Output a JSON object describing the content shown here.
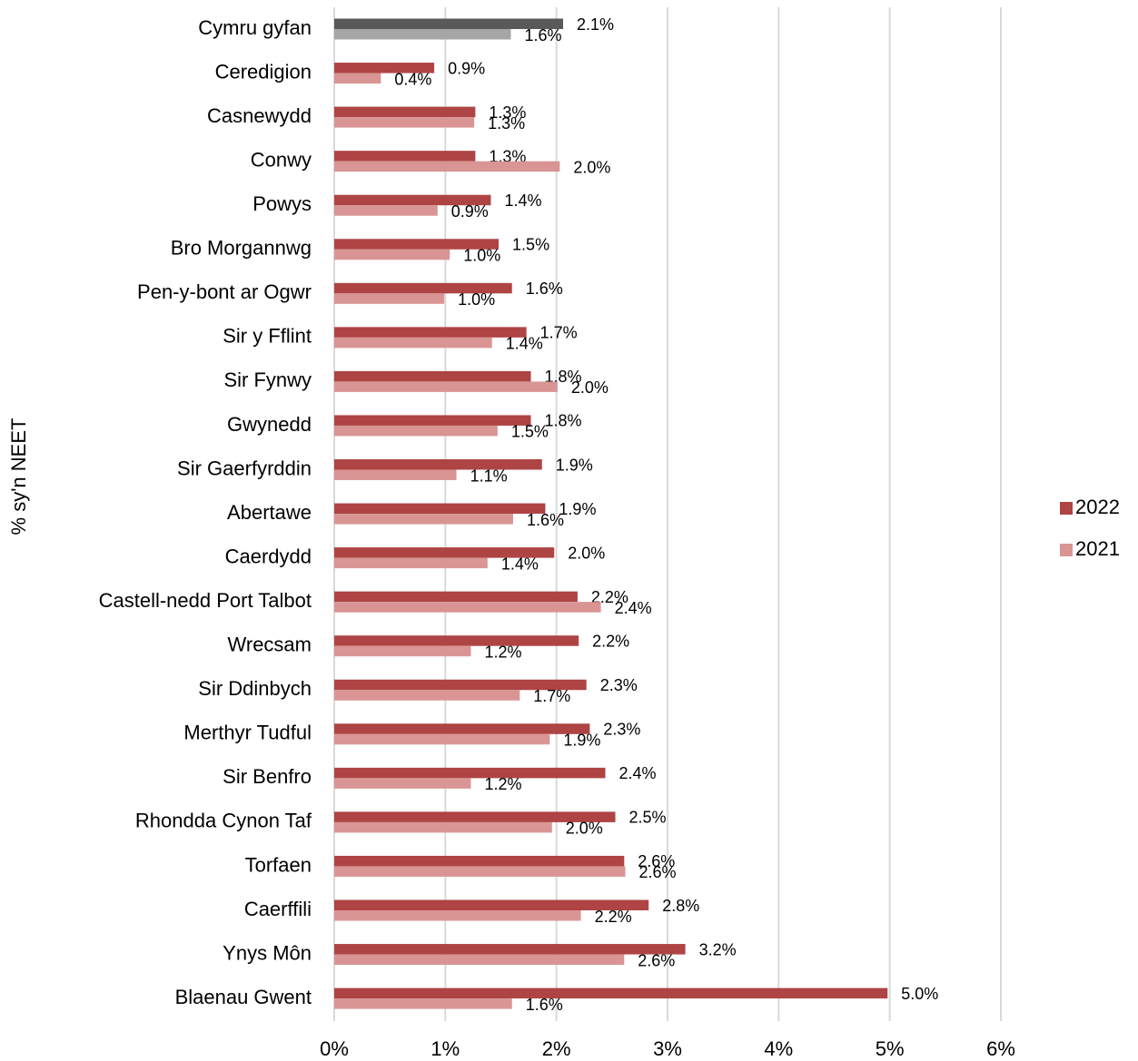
{
  "chart_data": {
    "type": "hbar",
    "y_axis_label": "% sy'n NEET",
    "categories": [
      "Cymru gyfan",
      "Ceredigion",
      "Casnewydd",
      "Conwy",
      "Powys",
      "Bro Morgannwg",
      "Pen-y-bont ar Ogwr",
      "Sir y Fflint",
      "Sir Fynwy",
      "Gwynedd",
      "Sir Gaerfyrddin",
      "Abertawe ",
      "Caerdydd",
      "Castell-nedd Port Talbot",
      "Wrecsam",
      "Sir Ddinbych",
      "Merthyr Tudful",
      "Sir Benfro",
      "Rhondda Cynon Taf",
      "Torfaen",
      "Caerffili",
      "Ynys Môn",
      "Blaenau Gwent"
    ],
    "series": [
      {
        "name": "2022",
        "color": "#ae4444",
        "point_colors": [
          "#595959",
          "#ae4444",
          "#ae4444",
          "#ae4444",
          "#ae4444",
          "#ae4444",
          "#ae4444",
          "#ae4444",
          "#ae4444",
          "#ae4444",
          "#ae4444",
          "#ae4444",
          "#ae4444",
          "#ae4444",
          "#ae4444",
          "#ae4444",
          "#ae4444",
          "#ae4444",
          "#ae4444",
          "#ae4444",
          "#ae4444",
          "#ae4444",
          "#ae4444"
        ],
        "values": [
          2.06,
          0.9,
          1.27,
          1.27,
          1.41,
          1.48,
          1.6,
          1.73,
          1.77,
          1.77,
          1.87,
          1.9,
          1.98,
          2.19,
          2.2,
          2.27,
          2.3,
          2.44,
          2.53,
          2.61,
          2.83,
          3.16,
          4.98
        ],
        "value_labels": [
          "2.1%",
          "0.9%",
          "1.3%",
          "1.3%",
          "1.4%",
          "1.5%",
          "1.6%",
          "1.7%",
          "1.8%",
          "1.8%",
          "1.9%",
          "1.9%",
          "2.0%",
          "2.2%",
          "2.2%",
          "2.3%",
          "2.3%",
          "2.4%",
          "2.5%",
          "2.6%",
          "2.8%",
          "3.2%",
          "5.0%"
        ]
      },
      {
        "name": "2021",
        "color": "#d99594",
        "point_colors": [
          "#a6a6a6",
          "#d99594",
          "#d99594",
          "#d99594",
          "#d99594",
          "#d99594",
          "#d99594",
          "#d99594",
          "#d99594",
          "#d99594",
          "#d99594",
          "#d99594",
          "#d99594",
          "#d99594",
          "#d99594",
          "#d99594",
          "#d99594",
          "#d99594",
          "#d99594",
          "#d99594",
          "#d99594",
          "#d99594",
          "#d99594"
        ],
        "values": [
          1.59,
          0.42,
          1.26,
          2.03,
          0.93,
          1.04,
          0.99,
          1.42,
          2.01,
          1.47,
          1.1,
          1.61,
          1.38,
          2.4,
          1.23,
          1.67,
          1.94,
          1.23,
          1.96,
          2.62,
          2.22,
          2.61,
          1.6
        ],
        "value_labels": [
          "1.6%",
          "0.4%",
          "1.3%",
          "2.0%",
          "0.9%",
          "1.0%",
          "1.0%",
          "1.4%",
          "2.0%",
          "1.5%",
          "1.1%",
          "1.6%",
          "1.4%",
          "2.4%",
          "1.2%",
          "1.7%",
          "1.9%",
          "1.2%",
          "2.0%",
          "2.6%",
          "2.2%",
          "2.6%",
          "1.6%"
        ]
      }
    ],
    "xlim": [
      0,
      6
    ],
    "xticks": [
      {
        "value": 0,
        "label": "0%"
      },
      {
        "value": 1,
        "label": "1%"
      },
      {
        "value": 2,
        "label": "2%"
      },
      {
        "value": 3,
        "label": "3%"
      },
      {
        "value": 4,
        "label": "4%"
      },
      {
        "value": 5,
        "label": "5%"
      },
      {
        "value": 6,
        "label": "6%"
      }
    ],
    "grid": true,
    "legend": "right"
  }
}
